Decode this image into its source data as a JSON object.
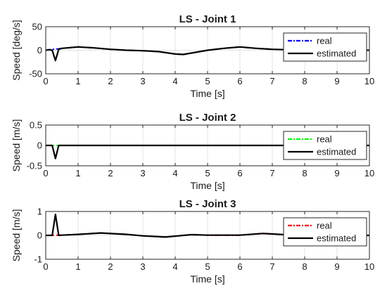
{
  "chart_data": [
    {
      "type": "line",
      "title": "LS - Joint 1",
      "xlabel": "Time [s]",
      "ylabel": "Speed [deg/s]",
      "xlim": [
        0,
        10
      ],
      "ylim": [
        -50,
        50
      ],
      "xticks": [
        0,
        1,
        2,
        3,
        4,
        5,
        6,
        7,
        8,
        9,
        10
      ],
      "yticks": [
        -50,
        0,
        50
      ],
      "grid": true,
      "legend_position": "top-right",
      "series": [
        {
          "name": "real",
          "color": "#0000ff",
          "dash": "dash-dot",
          "x": [
            0,
            0.1,
            0.2,
            0.3,
            0.4,
            0.5,
            1.0,
            1.5,
            2.0,
            2.5,
            3.0,
            3.5,
            4.0,
            4.25,
            4.5,
            5.0,
            5.5,
            6.0,
            6.5,
            7.0
          ],
          "y": [
            0,
            1,
            2,
            2.5,
            3,
            4,
            7,
            5,
            2,
            0,
            -1,
            -3,
            -8,
            -9,
            -6,
            0,
            4,
            7,
            4,
            2
          ]
        },
        {
          "name": "estimated",
          "color": "#000000",
          "dash": "solid",
          "x": [
            0,
            0.1,
            0.2,
            0.3,
            0.35,
            0.4,
            0.5,
            1.0,
            1.5,
            2.0,
            2.5,
            3.0,
            3.5,
            4.0,
            4.25,
            4.5,
            5.0,
            5.5,
            6.0,
            6.5,
            7.0,
            7.5,
            8.0,
            8.5,
            9.0,
            9.5,
            10.0
          ],
          "y": [
            0,
            1,
            0,
            -22,
            -10,
            2,
            4,
            7,
            5,
            2,
            0,
            -1,
            -3,
            -8,
            -9,
            -6,
            0,
            4,
            7,
            4,
            2,
            1,
            0,
            0,
            0,
            0,
            0
          ]
        }
      ]
    },
    {
      "type": "line",
      "title": "LS - Joint 2",
      "xlabel": "Time [s]",
      "ylabel": "Speed [m/s]",
      "xlim": [
        0,
        10
      ],
      "ylim": [
        -0.5,
        0.5
      ],
      "xticks": [
        0,
        1,
        2,
        3,
        4,
        5,
        6,
        7,
        8,
        9,
        10
      ],
      "yticks": [
        -0.5,
        0,
        0.5
      ],
      "grid": true,
      "legend_position": "top-right",
      "series": [
        {
          "name": "real",
          "color": "#00ff00",
          "dash": "dash-dot",
          "x": [
            0,
            0.5,
            1,
            2,
            3,
            4,
            5,
            6,
            7,
            8,
            9,
            10
          ],
          "y": [
            0,
            0,
            0,
            0,
            0,
            0,
            0,
            0,
            0,
            0,
            0,
            0
          ]
        },
        {
          "name": "estimated",
          "color": "#000000",
          "dash": "solid",
          "x": [
            0,
            0.2,
            0.3,
            0.4,
            0.5,
            1,
            2,
            3,
            4,
            5,
            6,
            7,
            8,
            9,
            10
          ],
          "y": [
            0,
            0,
            -0.32,
            0,
            0,
            0,
            0,
            0,
            0,
            0,
            0,
            0,
            0,
            0,
            0
          ]
        }
      ]
    },
    {
      "type": "line",
      "title": "LS - Joint 3",
      "xlabel": "Time [s]",
      "ylabel": "Speed [m/s]",
      "xlim": [
        0,
        10
      ],
      "ylim": [
        -1,
        1
      ],
      "xticks": [
        0,
        1,
        2,
        3,
        4,
        5,
        6,
        7,
        8,
        9,
        10
      ],
      "yticks": [
        -1,
        0,
        1
      ],
      "grid": true,
      "legend_position": "top-right",
      "series": [
        {
          "name": "real",
          "color": "#ff0000",
          "dash": "dash-dot",
          "x": [
            0,
            0.2,
            0.4,
            0.5,
            1.0,
            1.7,
            2.5,
            3.0,
            3.7,
            4.5,
            5.0,
            6.0,
            6.7,
            7.0
          ],
          "y": [
            0,
            0,
            0.01,
            0.01,
            0.04,
            0.1,
            0.04,
            -0.02,
            -0.07,
            0.03,
            0.01,
            0.01,
            0.08,
            0.06
          ]
        },
        {
          "name": "estimated",
          "color": "#000000",
          "dash": "solid",
          "x": [
            0,
            0.2,
            0.3,
            0.4,
            0.5,
            1.0,
            1.7,
            2.5,
            3.0,
            3.7,
            4.5,
            5.0,
            6.0,
            6.7,
            7.0,
            7.5,
            8.0,
            9.0,
            10.0
          ],
          "y": [
            0,
            0,
            0.88,
            0,
            0.01,
            0.04,
            0.1,
            0.04,
            -0.02,
            -0.07,
            0.03,
            0.01,
            0.01,
            0.08,
            0.06,
            0.02,
            0,
            0,
            0
          ]
        }
      ]
    }
  ]
}
